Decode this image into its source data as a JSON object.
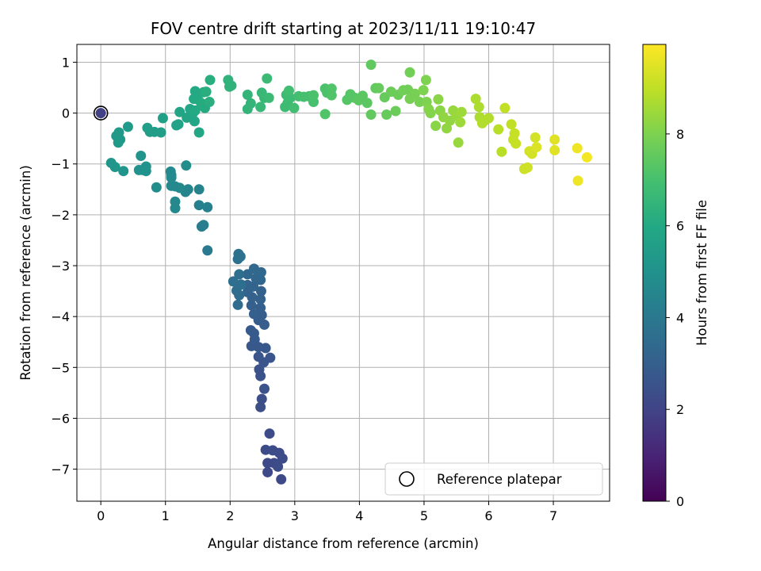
{
  "chart_data": {
    "type": "scatter",
    "title": "FOV centre drift starting at 2023/11/11 19:10:47",
    "xlabel": "Angular distance from reference (arcmin)",
    "ylabel": "Rotation from reference (arcmin)",
    "xlim": [
      -0.37,
      7.87
    ],
    "ylim": [
      -7.63,
      1.35
    ],
    "xticks": [
      0,
      1,
      2,
      3,
      4,
      5,
      6,
      7
    ],
    "yticks": [
      1,
      0,
      -1,
      -2,
      -3,
      -4,
      -5,
      -6,
      -7
    ],
    "xtick_labels": [
      "0",
      "1",
      "2",
      "3",
      "4",
      "5",
      "6",
      "7"
    ],
    "ytick_labels": [
      "1",
      "0",
      "−1",
      "−2",
      "−3",
      "−4",
      "−5",
      "−6",
      "−7"
    ],
    "grid": true,
    "colormap": "viridis",
    "colorbar": {
      "label": "Hours from first FF file",
      "range": [
        0,
        9.95
      ],
      "ticks": [
        0,
        2,
        4,
        6,
        8
      ],
      "tick_labels": [
        "0",
        "2",
        "4",
        "6",
        "8"
      ]
    },
    "legend": {
      "position": "lower-right",
      "entries": [
        "Reference platepar"
      ]
    },
    "reference_point": {
      "x": 0,
      "y": 0,
      "label": "Reference platepar"
    },
    "points": [
      {
        "x": 0.0,
        "y": 0.0,
        "h": 1.9
      },
      {
        "x": 2.79,
        "y": -7.2,
        "h": 2.2
      },
      {
        "x": 2.58,
        "y": -7.06,
        "h": 2.2
      },
      {
        "x": 2.58,
        "y": -6.88,
        "h": 2.2
      },
      {
        "x": 2.68,
        "y": -6.88,
        "h": 2.2
      },
      {
        "x": 2.74,
        "y": -6.95,
        "h": 2.3
      },
      {
        "x": 2.81,
        "y": -6.79,
        "h": 2.3
      },
      {
        "x": 2.76,
        "y": -6.68,
        "h": 2.3
      },
      {
        "x": 2.66,
        "y": -6.63,
        "h": 2.3
      },
      {
        "x": 2.55,
        "y": -6.62,
        "h": 2.3
      },
      {
        "x": 2.61,
        "y": -6.3,
        "h": 2.3
      },
      {
        "x": 2.47,
        "y": -5.78,
        "h": 2.4
      },
      {
        "x": 2.49,
        "y": -5.62,
        "h": 2.4
      },
      {
        "x": 2.53,
        "y": -5.42,
        "h": 2.5
      },
      {
        "x": 2.47,
        "y": -5.17,
        "h": 2.5
      },
      {
        "x": 2.45,
        "y": -5.04,
        "h": 2.5
      },
      {
        "x": 2.52,
        "y": -4.9,
        "h": 2.6
      },
      {
        "x": 2.62,
        "y": -4.81,
        "h": 2.6
      },
      {
        "x": 2.44,
        "y": -4.79,
        "h": 2.6
      },
      {
        "x": 2.55,
        "y": -4.62,
        "h": 2.7
      },
      {
        "x": 2.44,
        "y": -4.6,
        "h": 2.7
      },
      {
        "x": 2.33,
        "y": -4.58,
        "h": 2.7
      },
      {
        "x": 2.38,
        "y": -4.45,
        "h": 2.8
      },
      {
        "x": 2.32,
        "y": -4.27,
        "h": 2.8
      },
      {
        "x": 2.37,
        "y": -4.33,
        "h": 2.8
      },
      {
        "x": 2.53,
        "y": -4.16,
        "h": 2.9
      },
      {
        "x": 2.44,
        "y": -4.07,
        "h": 2.9
      },
      {
        "x": 2.49,
        "y": -3.97,
        "h": 2.9
      },
      {
        "x": 2.37,
        "y": -3.95,
        "h": 3.0
      },
      {
        "x": 2.47,
        "y": -3.83,
        "h": 3.0
      },
      {
        "x": 2.33,
        "y": -3.78,
        "h": 3.0
      },
      {
        "x": 2.47,
        "y": -3.66,
        "h": 3.1
      },
      {
        "x": 2.34,
        "y": -3.62,
        "h": 3.1
      },
      {
        "x": 2.48,
        "y": -3.5,
        "h": 3.1
      },
      {
        "x": 2.27,
        "y": -3.52,
        "h": 3.2
      },
      {
        "x": 2.36,
        "y": -3.41,
        "h": 3.2
      },
      {
        "x": 2.27,
        "y": -3.38,
        "h": 3.2
      },
      {
        "x": 2.47,
        "y": -3.28,
        "h": 3.3
      },
      {
        "x": 2.4,
        "y": -3.25,
        "h": 3.3
      },
      {
        "x": 2.27,
        "y": -3.17,
        "h": 3.3
      },
      {
        "x": 2.48,
        "y": -3.13,
        "h": 3.4
      },
      {
        "x": 2.37,
        "y": -3.06,
        "h": 3.4
      },
      {
        "x": 2.12,
        "y": -3.77,
        "h": 3.5
      },
      {
        "x": 2.14,
        "y": -3.58,
        "h": 3.5
      },
      {
        "x": 2.1,
        "y": -3.49,
        "h": 3.5
      },
      {
        "x": 2.17,
        "y": -3.37,
        "h": 3.6
      },
      {
        "x": 2.05,
        "y": -3.31,
        "h": 3.6
      },
      {
        "x": 2.14,
        "y": -3.17,
        "h": 3.6
      },
      {
        "x": 2.12,
        "y": -2.87,
        "h": 3.7
      },
      {
        "x": 2.13,
        "y": -2.77,
        "h": 3.7
      },
      {
        "x": 2.16,
        "y": -2.82,
        "h": 3.7
      },
      {
        "x": 1.65,
        "y": -2.7,
        "h": 4.0
      },
      {
        "x": 1.56,
        "y": -2.23,
        "h": 4.2
      },
      {
        "x": 1.59,
        "y": -2.2,
        "h": 4.2
      },
      {
        "x": 1.52,
        "y": -1.81,
        "h": 4.3
      },
      {
        "x": 1.65,
        "y": -1.85,
        "h": 4.3
      },
      {
        "x": 1.52,
        "y": -1.5,
        "h": 4.4
      },
      {
        "x": 1.31,
        "y": -1.55,
        "h": 4.5
      },
      {
        "x": 1.35,
        "y": -1.5,
        "h": 4.5
      },
      {
        "x": 1.15,
        "y": -1.44,
        "h": 4.6
      },
      {
        "x": 1.09,
        "y": -1.43,
        "h": 4.6
      },
      {
        "x": 1.22,
        "y": -1.47,
        "h": 4.6
      },
      {
        "x": 1.15,
        "y": -1.74,
        "h": 4.6
      },
      {
        "x": 1.15,
        "y": -1.87,
        "h": 4.6
      },
      {
        "x": 1.09,
        "y": -1.27,
        "h": 4.7
      },
      {
        "x": 1.08,
        "y": -1.15,
        "h": 4.7
      },
      {
        "x": 1.09,
        "y": -1.22,
        "h": 4.7
      },
      {
        "x": 1.32,
        "y": -1.03,
        "h": 4.8
      },
      {
        "x": 0.86,
        "y": -1.46,
        "h": 4.8
      },
      {
        "x": 0.7,
        "y": -1.14,
        "h": 5.0
      },
      {
        "x": 0.65,
        "y": -1.12,
        "h": 5.0
      },
      {
        "x": 0.59,
        "y": -1.12,
        "h": 5.0
      },
      {
        "x": 0.7,
        "y": -1.05,
        "h": 5.0
      },
      {
        "x": 0.62,
        "y": -0.84,
        "h": 5.1
      },
      {
        "x": 0.35,
        "y": -1.14,
        "h": 5.1
      },
      {
        "x": 0.22,
        "y": -1.06,
        "h": 5.2
      },
      {
        "x": 0.16,
        "y": -0.98,
        "h": 5.2
      },
      {
        "x": 0.3,
        "y": -0.52,
        "h": 5.3
      },
      {
        "x": 0.27,
        "y": -0.58,
        "h": 5.3
      },
      {
        "x": 0.24,
        "y": -0.45,
        "h": 5.3
      },
      {
        "x": 0.28,
        "y": -0.38,
        "h": 5.3
      },
      {
        "x": 0.42,
        "y": -0.27,
        "h": 5.4
      },
      {
        "x": 0.72,
        "y": -0.29,
        "h": 5.5
      },
      {
        "x": 0.76,
        "y": -0.37,
        "h": 5.5
      },
      {
        "x": 0.83,
        "y": -0.37,
        "h": 5.5
      },
      {
        "x": 0.93,
        "y": -0.38,
        "h": 5.5
      },
      {
        "x": 0.96,
        "y": -0.1,
        "h": 5.6
      },
      {
        "x": 1.2,
        "y": -0.22,
        "h": 5.7
      },
      {
        "x": 1.17,
        "y": -0.24,
        "h": 5.7
      },
      {
        "x": 1.22,
        "y": 0.02,
        "h": 5.8
      },
      {
        "x": 1.33,
        "y": -0.09,
        "h": 5.8
      },
      {
        "x": 1.38,
        "y": 0.08,
        "h": 5.9
      },
      {
        "x": 1.42,
        "y": -0.01,
        "h": 5.9
      },
      {
        "x": 1.45,
        "y": -0.16,
        "h": 5.9
      },
      {
        "x": 1.52,
        "y": -0.38,
        "h": 5.9
      },
      {
        "x": 1.46,
        "y": 0.05,
        "h": 6.0
      },
      {
        "x": 1.5,
        "y": 0.27,
        "h": 6.0
      },
      {
        "x": 1.44,
        "y": 0.28,
        "h": 6.0
      },
      {
        "x": 1.46,
        "y": 0.43,
        "h": 6.0
      },
      {
        "x": 1.55,
        "y": 0.2,
        "h": 6.1
      },
      {
        "x": 1.61,
        "y": 0.1,
        "h": 6.1
      },
      {
        "x": 1.59,
        "y": 0.41,
        "h": 6.1
      },
      {
        "x": 1.63,
        "y": 0.42,
        "h": 6.2
      },
      {
        "x": 1.68,
        "y": 0.22,
        "h": 6.2
      },
      {
        "x": 1.69,
        "y": 0.65,
        "h": 6.2
      },
      {
        "x": 1.97,
        "y": 0.65,
        "h": 6.4
      },
      {
        "x": 1.99,
        "y": 0.52,
        "h": 6.4
      },
      {
        "x": 2.02,
        "y": 0.54,
        "h": 6.4
      },
      {
        "x": 2.27,
        "y": 0.08,
        "h": 6.5
      },
      {
        "x": 2.32,
        "y": 0.19,
        "h": 6.5
      },
      {
        "x": 2.27,
        "y": 0.36,
        "h": 6.5
      },
      {
        "x": 2.47,
        "y": 0.12,
        "h": 6.6
      },
      {
        "x": 2.53,
        "y": 0.3,
        "h": 6.6
      },
      {
        "x": 2.49,
        "y": 0.4,
        "h": 6.6
      },
      {
        "x": 2.57,
        "y": 0.68,
        "h": 6.7
      },
      {
        "x": 2.6,
        "y": 0.3,
        "h": 6.7
      },
      {
        "x": 2.85,
        "y": 0.12,
        "h": 6.8
      },
      {
        "x": 2.89,
        "y": 0.2,
        "h": 6.8
      },
      {
        "x": 2.87,
        "y": 0.36,
        "h": 6.8
      },
      {
        "x": 2.93,
        "y": 0.3,
        "h": 6.8
      },
      {
        "x": 2.99,
        "y": 0.1,
        "h": 6.9
      },
      {
        "x": 2.91,
        "y": 0.44,
        "h": 6.9
      },
      {
        "x": 3.06,
        "y": 0.33,
        "h": 6.9
      },
      {
        "x": 3.14,
        "y": 0.32,
        "h": 7.0
      },
      {
        "x": 3.22,
        "y": 0.33,
        "h": 7.0
      },
      {
        "x": 3.29,
        "y": 0.22,
        "h": 7.0
      },
      {
        "x": 3.29,
        "y": 0.35,
        "h": 7.1
      },
      {
        "x": 3.47,
        "y": 0.48,
        "h": 7.1
      },
      {
        "x": 3.5,
        "y": 0.4,
        "h": 7.1
      },
      {
        "x": 3.57,
        "y": 0.48,
        "h": 7.2
      },
      {
        "x": 3.57,
        "y": 0.35,
        "h": 7.2
      },
      {
        "x": 3.47,
        "y": -0.02,
        "h": 7.2
      },
      {
        "x": 3.81,
        "y": 0.26,
        "h": 7.3
      },
      {
        "x": 3.86,
        "y": 0.37,
        "h": 7.3
      },
      {
        "x": 3.93,
        "y": 0.3,
        "h": 7.3
      },
      {
        "x": 3.99,
        "y": 0.25,
        "h": 7.4
      },
      {
        "x": 4.05,
        "y": 0.34,
        "h": 7.4
      },
      {
        "x": 4.12,
        "y": 0.2,
        "h": 7.4
      },
      {
        "x": 4.18,
        "y": -0.03,
        "h": 7.5
      },
      {
        "x": 4.18,
        "y": 0.95,
        "h": 7.5
      },
      {
        "x": 4.25,
        "y": 0.49,
        "h": 7.5
      },
      {
        "x": 4.3,
        "y": 0.49,
        "h": 7.6
      },
      {
        "x": 4.39,
        "y": 0.31,
        "h": 7.6
      },
      {
        "x": 4.42,
        "y": -0.03,
        "h": 7.6
      },
      {
        "x": 4.49,
        "y": 0.42,
        "h": 7.7
      },
      {
        "x": 4.56,
        "y": 0.04,
        "h": 7.7
      },
      {
        "x": 4.6,
        "y": 0.36,
        "h": 7.7
      },
      {
        "x": 4.68,
        "y": 0.45,
        "h": 7.8
      },
      {
        "x": 4.75,
        "y": 0.46,
        "h": 7.8
      },
      {
        "x": 4.78,
        "y": 0.8,
        "h": 7.8
      },
      {
        "x": 4.78,
        "y": 0.28,
        "h": 7.9
      },
      {
        "x": 4.86,
        "y": 0.38,
        "h": 7.9
      },
      {
        "x": 4.93,
        "y": 0.22,
        "h": 7.9
      },
      {
        "x": 4.99,
        "y": 0.45,
        "h": 8.0
      },
      {
        "x": 5.03,
        "y": 0.65,
        "h": 8.0
      },
      {
        "x": 5.04,
        "y": 0.22,
        "h": 8.0
      },
      {
        "x": 5.07,
        "y": 0.08,
        "h": 8.1
      },
      {
        "x": 5.1,
        "y": 0.0,
        "h": 8.1
      },
      {
        "x": 5.18,
        "y": -0.25,
        "h": 8.2
      },
      {
        "x": 5.22,
        "y": 0.27,
        "h": 8.2
      },
      {
        "x": 5.25,
        "y": 0.05,
        "h": 8.2
      },
      {
        "x": 5.3,
        "y": -0.08,
        "h": 8.3
      },
      {
        "x": 5.35,
        "y": -0.3,
        "h": 8.3
      },
      {
        "x": 5.4,
        "y": -0.15,
        "h": 8.3
      },
      {
        "x": 5.45,
        "y": 0.05,
        "h": 8.4
      },
      {
        "x": 5.5,
        "y": -0.05,
        "h": 8.4
      },
      {
        "x": 5.53,
        "y": -0.58,
        "h": 8.4
      },
      {
        "x": 5.56,
        "y": -0.18,
        "h": 8.5
      },
      {
        "x": 5.58,
        "y": 0.02,
        "h": 8.5
      },
      {
        "x": 5.8,
        "y": 0.28,
        "h": 8.7
      },
      {
        "x": 5.85,
        "y": 0.12,
        "h": 8.7
      },
      {
        "x": 5.86,
        "y": -0.08,
        "h": 8.7
      },
      {
        "x": 5.9,
        "y": -0.2,
        "h": 8.8
      },
      {
        "x": 5.95,
        "y": -0.14,
        "h": 8.8
      },
      {
        "x": 6.0,
        "y": -0.1,
        "h": 8.8
      },
      {
        "x": 6.15,
        "y": -0.32,
        "h": 8.9
      },
      {
        "x": 6.2,
        "y": -0.76,
        "h": 8.9
      },
      {
        "x": 6.25,
        "y": 0.1,
        "h": 9.0
      },
      {
        "x": 6.35,
        "y": -0.22,
        "h": 9.0
      },
      {
        "x": 6.38,
        "y": -0.52,
        "h": 9.1
      },
      {
        "x": 6.4,
        "y": -0.4,
        "h": 9.1
      },
      {
        "x": 6.42,
        "y": -0.6,
        "h": 9.1
      },
      {
        "x": 6.55,
        "y": -1.1,
        "h": 9.2
      },
      {
        "x": 6.6,
        "y": -1.07,
        "h": 9.2
      },
      {
        "x": 6.63,
        "y": -0.75,
        "h": 9.3
      },
      {
        "x": 6.67,
        "y": -0.8,
        "h": 9.3
      },
      {
        "x": 6.72,
        "y": -0.48,
        "h": 9.3
      },
      {
        "x": 6.74,
        "y": -0.67,
        "h": 9.4
      },
      {
        "x": 7.02,
        "y": -0.52,
        "h": 9.5
      },
      {
        "x": 7.02,
        "y": -0.73,
        "h": 9.5
      },
      {
        "x": 7.37,
        "y": -0.69,
        "h": 9.7
      },
      {
        "x": 7.38,
        "y": -1.33,
        "h": 9.7
      },
      {
        "x": 7.52,
        "y": -0.87,
        "h": 9.8
      }
    ]
  }
}
